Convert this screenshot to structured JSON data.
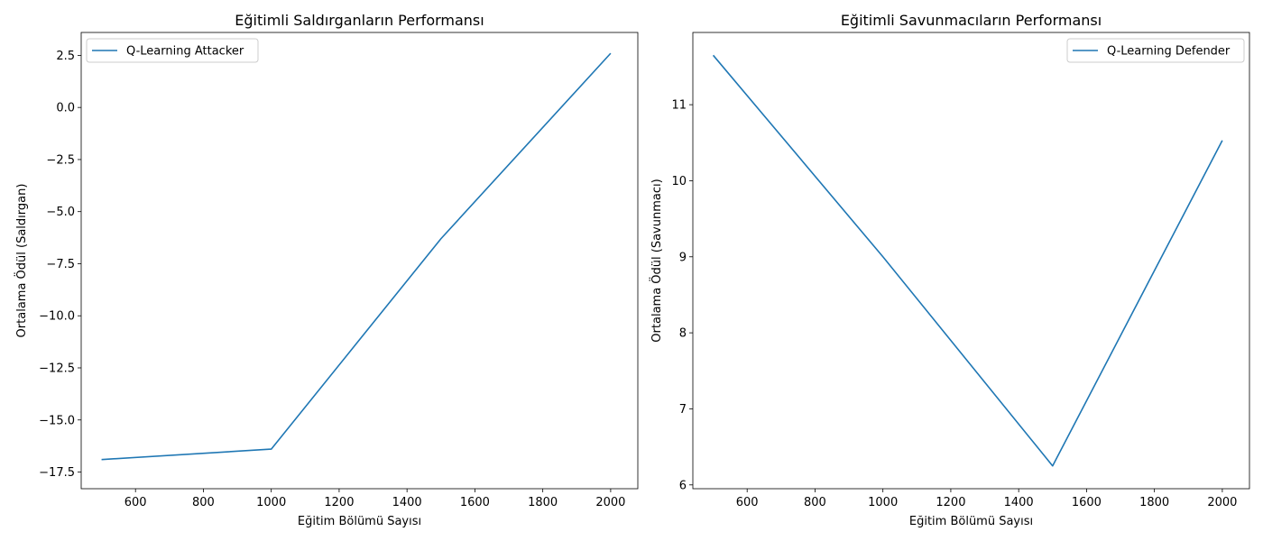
{
  "chart_data": [
    {
      "type": "line",
      "title": "Eğitimli Saldırganların Performansı",
      "xlabel": "Eğitim Bölümü Sayısı",
      "ylabel": "Ortalama Ödül (Saldırgan)",
      "xlim": [
        440,
        2080
      ],
      "ylim": [
        -18.3,
        3.6
      ],
      "xticks": [
        600,
        800,
        1000,
        1200,
        1400,
        1600,
        1800,
        2000
      ],
      "xtick_labels": [
        "600",
        "800",
        "1000",
        "1200",
        "1400",
        "1600",
        "1800",
        "2000"
      ],
      "yticks": [
        -17.5,
        -15.0,
        -12.5,
        -10.0,
        -7.5,
        -5.0,
        -2.5,
        0.0,
        2.5
      ],
      "ytick_labels": [
        "−17.5",
        "−15.0",
        "−12.5",
        "−10.0",
        "−7.5",
        "−5.0",
        "−2.5",
        "0.0",
        "2.5"
      ],
      "legend_position": "top-left",
      "grid": false,
      "series": [
        {
          "name": "Q-Learning Attacker",
          "color": "#1f77b4",
          "x": [
            500,
            1000,
            1500,
            2000
          ],
          "y": [
            -16.9,
            -16.4,
            -6.3,
            2.6
          ]
        }
      ]
    },
    {
      "type": "line",
      "title": "Eğitimli Savunmacıların Performansı",
      "xlabel": "Eğitim Bölümü Sayısı",
      "ylabel": "Ortalama Ödül (Savunmacı)",
      "xlim": [
        440,
        2080
      ],
      "ylim": [
        5.95,
        11.95
      ],
      "xticks": [
        600,
        800,
        1000,
        1200,
        1400,
        1600,
        1800,
        2000
      ],
      "xtick_labels": [
        "600",
        "800",
        "1000",
        "1200",
        "1400",
        "1600",
        "1800",
        "2000"
      ],
      "yticks": [
        6,
        7,
        8,
        9,
        10,
        11
      ],
      "ytick_labels": [
        "6",
        "7",
        "8",
        "9",
        "10",
        "11"
      ],
      "legend_position": "top-right",
      "grid": false,
      "series": [
        {
          "name": "Q-Learning Defender",
          "color": "#1f77b4",
          "x": [
            500,
            1000,
            1500,
            2000
          ],
          "y": [
            11.65,
            9.0,
            6.25,
            10.53
          ]
        }
      ]
    }
  ]
}
